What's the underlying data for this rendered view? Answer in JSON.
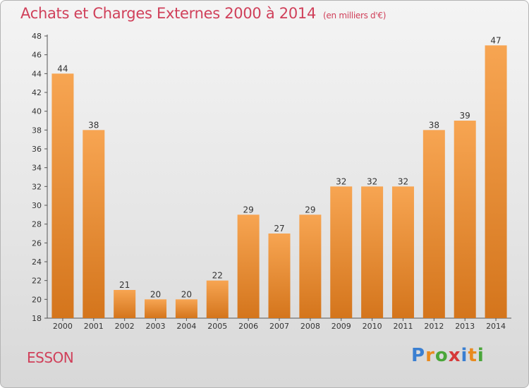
{
  "header": {
    "title": "Achats et Charges Externes 2000 à 2014",
    "unit": "(en milliers d'€)"
  },
  "footer": {
    "commune": "ESSON",
    "logo_text": "Proxiti",
    "logo_colors": [
      "#3a7fd1",
      "#e98a1f",
      "#4aa63a",
      "#d63a3a",
      "#3a7fd1",
      "#e98a1f",
      "#4aa63a"
    ]
  },
  "chart_data": {
    "type": "bar",
    "title": "Achats et Charges Externes 2000 à 2014",
    "subtitle": "(en milliers d'€)",
    "xlabel": "",
    "ylabel": "",
    "categories": [
      "2000",
      "2001",
      "2002",
      "2003",
      "2004",
      "2005",
      "2006",
      "2007",
      "2008",
      "2009",
      "2010",
      "2011",
      "2012",
      "2013",
      "2014"
    ],
    "values": [
      44,
      38,
      21,
      20,
      20,
      22,
      29,
      27,
      29,
      32,
      32,
      32,
      38,
      39,
      47
    ],
    "ylim": [
      18,
      48
    ],
    "yticks": [
      18,
      20,
      22,
      24,
      26,
      28,
      30,
      32,
      34,
      36,
      38,
      40,
      42,
      44,
      46,
      48
    ],
    "grid": false,
    "bar_color_top": "#f7a552",
    "bar_color_bottom": "#d4751c"
  }
}
